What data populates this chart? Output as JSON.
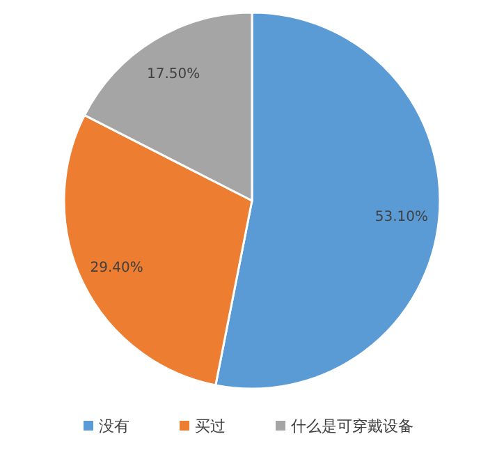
{
  "chart_data": {
    "type": "pie",
    "categories": [
      "没有",
      "买过",
      "什么是可穿戴设备"
    ],
    "values": [
      53.1,
      29.4,
      17.5
    ],
    "colors": [
      "#5b9bd5",
      "#ed7d31",
      "#a5a5a5"
    ],
    "value_labels": [
      "53.10%",
      "29.40%",
      "17.50%"
    ],
    "legend": "bottom"
  }
}
